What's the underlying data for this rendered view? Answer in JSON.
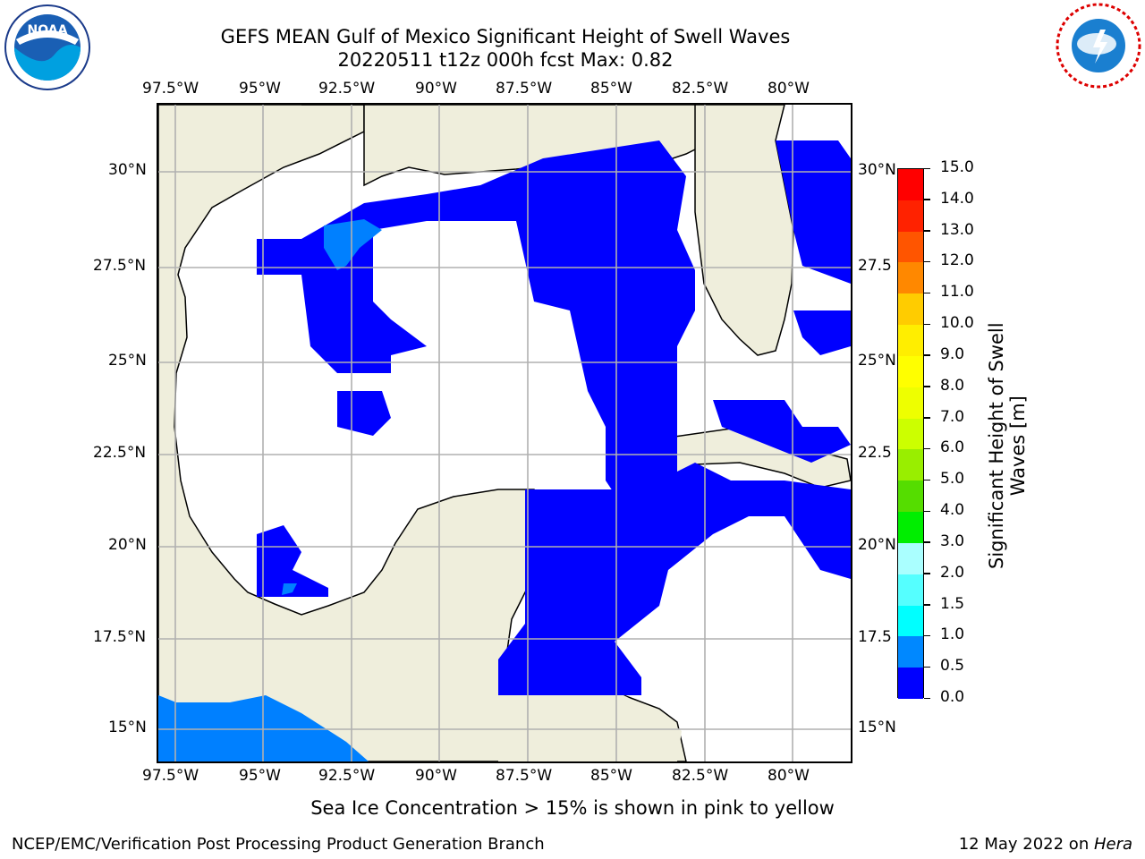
{
  "title_line1": "GEFS MEAN Gulf of Mexico Significant Height of Swell Waves",
  "title_line2": "20220511 t12z 000h fcst   Max: 0.82",
  "lon_ticks": [
    "97.5°W",
    "95°W",
    "92.5°W",
    "90°W",
    "87.5°W",
    "85°W",
    "82.5°W",
    "80°W"
  ],
  "lat_ticks_left": [
    "30°N",
    "27.5°N",
    "25°N",
    "22.5°N",
    "20°N",
    "17.5°N",
    "15°N"
  ],
  "lat_ticks_right": [
    "30°N",
    "27.5",
    "25°N",
    "22.5",
    "20°N",
    "17.5",
    "15°N"
  ],
  "colorbar": {
    "title": "Significant Height of Swell Waves [m]",
    "title_line1": "Significant Height of Swell",
    "title_line2": "Waves [m]",
    "labels": [
      "15.0",
      "14.0",
      "13.0",
      "12.0",
      "11.0",
      "10.0",
      "9.0",
      "8.0",
      "7.0",
      "6.0",
      "5.0",
      "4.0",
      "3.0",
      "2.0",
      "1.5",
      "1.0",
      "0.5",
      "0.0"
    ],
    "colors": [
      "#ff0000",
      "#ff2200",
      "#ff5500",
      "#ff8800",
      "#ffaa00",
      "#ffcc00",
      "#ffee00",
      "#ffff00",
      "#eeff00",
      "#ccff00",
      "#99ee00",
      "#55dd00",
      "#00ee00",
      "#55ff88",
      "#aaffff",
      "#55ffff",
      "#00ffff",
      "#0088ff",
      "#0000ff"
    ]
  },
  "colors": {
    "land": "#efeedc",
    "ocean_low": "#0000ff",
    "ocean_mid": "#0080ff",
    "grid": "#b0b0b0"
  },
  "ice_note": "Sea Ice Concentration > 15% is shown in pink to yellow",
  "footer_left": "NCEP/EMC/Verification Post Processing Product Generation Branch",
  "footer_right_date": "12 May 2022 on ",
  "footer_right_host": "Hera",
  "logos": {
    "left": "noaa-logo",
    "right": "nws-logo"
  }
}
